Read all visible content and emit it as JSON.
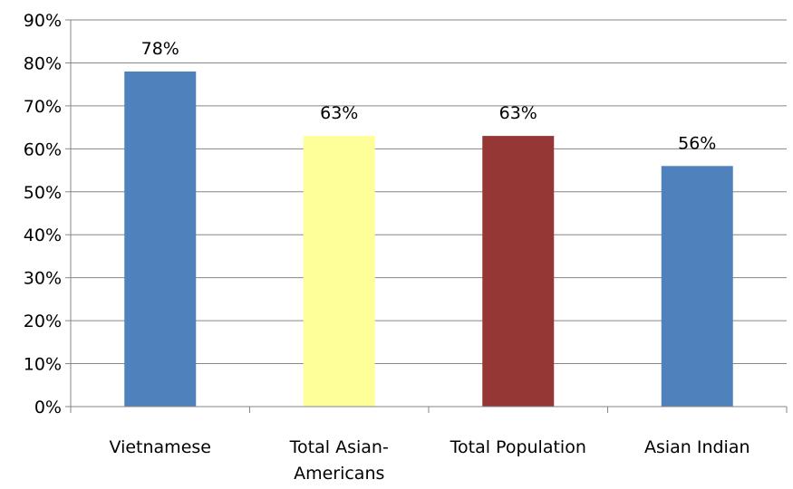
{
  "chart_data": {
    "type": "bar",
    "categories": [
      [
        "Vietnamese"
      ],
      [
        "Total Asian-",
        "Americans"
      ],
      [
        "Total Population"
      ],
      [
        "Asian Indian"
      ]
    ],
    "values": [
      78,
      63,
      63,
      56
    ],
    "data_labels": [
      "78%",
      "63%",
      "63%",
      "56%"
    ],
    "bar_colors": [
      "#4f81bd",
      "#ffff99",
      "#953735",
      "#4f81bd"
    ],
    "ylim": [
      0,
      90
    ],
    "yticks": [
      0,
      10,
      20,
      30,
      40,
      50,
      60,
      70,
      80,
      90
    ],
    "ytick_labels": [
      "0%",
      "10%",
      "20%",
      "30%",
      "40%",
      "50%",
      "60%",
      "70%",
      "80%",
      "90%"
    ],
    "grid": true,
    "legend": "none",
    "title": "",
    "xlabel": "",
    "ylabel": ""
  }
}
